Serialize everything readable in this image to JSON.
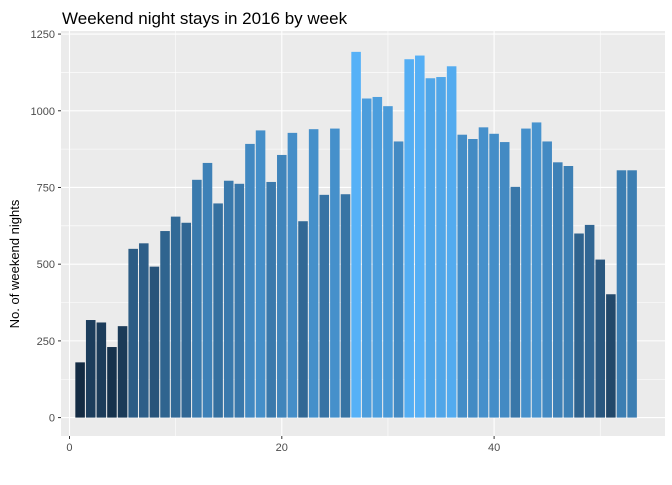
{
  "chart_data": {
    "type": "bar",
    "title": "Weekend night stays in 2016 by week",
    "xlabel": "",
    "ylabel": "No. of weekend nights",
    "xlim": [
      -0.8,
      56.1
    ],
    "ylim": [
      -60,
      1260
    ],
    "x_ticks": [
      0,
      20,
      40
    ],
    "x_tick_labels": [
      "0",
      "20",
      "40"
    ],
    "y_ticks": [
      0,
      250,
      500,
      750,
      1000,
      1250
    ],
    "y_tick_labels": [
      "0",
      "250",
      "500",
      "750",
      "1000",
      "1250"
    ],
    "grid": true,
    "legend": "none",
    "colors": {
      "panel_bg": "#ebebeb",
      "grid_major": "#ffffff",
      "bar_low": "#132b43",
      "bar_high": "#56b1f7"
    },
    "x": [
      1,
      2,
      3,
      4,
      5,
      6,
      7,
      8,
      9,
      10,
      11,
      12,
      13,
      14,
      15,
      16,
      17,
      18,
      19,
      20,
      21,
      22,
      23,
      24,
      25,
      26,
      27,
      28,
      29,
      30,
      31,
      32,
      33,
      34,
      35,
      36,
      37,
      38,
      39,
      40,
      41,
      42,
      43,
      44,
      45,
      46,
      47,
      48,
      49,
      50,
      51,
      52,
      53
    ],
    "values": [
      180,
      318,
      310,
      230,
      298,
      550,
      568,
      492,
      608,
      655,
      635,
      775,
      830,
      698,
      772,
      762,
      892,
      936,
      768,
      856,
      928,
      640,
      940,
      726,
      942,
      728,
      1192,
      1040,
      1045,
      1015,
      900,
      1168,
      1180,
      1106,
      1110,
      1145,
      922,
      908,
      946,
      925,
      898,
      752,
      942,
      962,
      900,
      832,
      820,
      600,
      628,
      515,
      402,
      806,
      806
    ]
  }
}
